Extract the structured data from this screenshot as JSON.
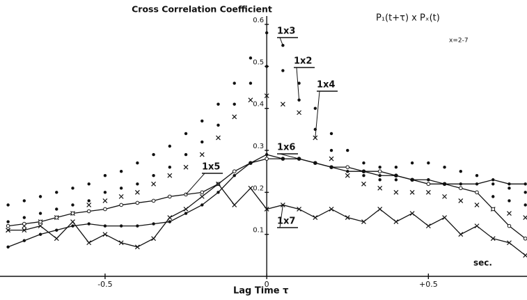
{
  "chart_data": {
    "type": "line",
    "title": "Cross Correlation Coefficient",
    "formula": "P₁(t+τ) x Pₓ(t)",
    "subtitle": "x=2-7",
    "x_label": "Lag Time  τ",
    "x_unit": "sec.",
    "xlim": [
      -0.825,
      0.805
    ],
    "ylim": [
      0,
      0.62
    ],
    "xticks": [
      {
        "value": -0.5,
        "label": "-0.5"
      },
      0,
      {
        "value": 0.5,
        "label": "+0.5"
      }
    ],
    "yticks": [
      0.1,
      0.2,
      0.3,
      0.4,
      0.5,
      0.6
    ],
    "x": [
      -0.8,
      -0.75,
      -0.7,
      -0.65,
      -0.6,
      -0.55,
      -0.5,
      -0.45,
      -0.4,
      -0.35,
      -0.3,
      -0.25,
      -0.2,
      -0.15,
      -0.1,
      -0.05,
      0,
      0.05,
      0.1,
      0.15,
      0.2,
      0.25,
      0.3,
      0.35,
      0.4,
      0.45,
      0.5,
      0.55,
      0.6,
      0.65,
      0.7,
      0.75,
      0.8
    ],
    "series": [
      {
        "name": "1x3",
        "color": "#111111",
        "marker": "dot",
        "line": false,
        "values": [
          0.17,
          0.18,
          0.19,
          0.2,
          0.21,
          0.22,
          0.24,
          0.25,
          0.27,
          0.29,
          0.31,
          0.34,
          0.37,
          0.41,
          0.46,
          0.52,
          0.58,
          0.55,
          0.46,
          0.4,
          0.34,
          0.3,
          0.27,
          0.26,
          0.26,
          0.27,
          0.27,
          0.26,
          0.25,
          0.24,
          0.22,
          0.21,
          0.2
        ]
      },
      {
        "name": "1x2",
        "color": "#111111",
        "marker": "dot",
        "line": false,
        "values": [
          0.13,
          0.14,
          0.15,
          0.16,
          0.17,
          0.18,
          0.2,
          0.21,
          0.22,
          0.24,
          0.26,
          0.29,
          0.32,
          0.36,
          0.41,
          0.46,
          0.5,
          0.49,
          0.42,
          0.35,
          0.3,
          0.26,
          0.24,
          0.23,
          0.23,
          0.23,
          0.23,
          0.22,
          0.21,
          0.2,
          0.19,
          0.18,
          0.17
        ]
      },
      {
        "name": "1x4",
        "color": "#111111",
        "marker": "cross",
        "line": false,
        "values": [
          0.11,
          0.12,
          0.13,
          0.14,
          0.15,
          0.17,
          0.18,
          0.19,
          0.2,
          0.22,
          0.24,
          0.26,
          0.29,
          0.33,
          0.38,
          0.42,
          0.43,
          0.41,
          0.39,
          0.33,
          0.28,
          0.24,
          0.22,
          0.21,
          0.2,
          0.2,
          0.2,
          0.19,
          0.18,
          0.17,
          0.16,
          0.15,
          0.14
        ]
      },
      {
        "name": "1x5",
        "color": "#111111",
        "marker": "circle",
        "line": true,
        "values": [
          0.12,
          0.125,
          0.13,
          0.14,
          0.15,
          0.155,
          0.16,
          0.17,
          0.175,
          0.18,
          0.19,
          0.195,
          0.2,
          0.22,
          0.25,
          0.27,
          0.28,
          0.28,
          0.28,
          0.27,
          0.26,
          0.26,
          0.25,
          0.25,
          0.24,
          0.23,
          0.22,
          0.22,
          0.21,
          0.2,
          0.16,
          0.12,
          0.09
        ]
      },
      {
        "name": "1x6",
        "color": "#111111",
        "marker": "dot",
        "line": true,
        "values": [
          0.07,
          0.085,
          0.1,
          0.11,
          0.12,
          0.125,
          0.12,
          0.12,
          0.12,
          0.125,
          0.13,
          0.15,
          0.17,
          0.2,
          0.24,
          0.27,
          0.29,
          0.28,
          0.28,
          0.27,
          0.26,
          0.25,
          0.25,
          0.24,
          0.24,
          0.23,
          0.23,
          0.22,
          0.22,
          0.22,
          0.23,
          0.22,
          0.22
        ]
      },
      {
        "name": "1x7",
        "color": "#111111",
        "marker": "cross",
        "line": true,
        "values": [
          0.11,
          0.11,
          0.12,
          0.09,
          0.13,
          0.08,
          0.1,
          0.08,
          0.07,
          0.09,
          0.14,
          0.16,
          0.19,
          0.22,
          0.17,
          0.21,
          0.16,
          0.17,
          0.16,
          0.14,
          0.16,
          0.14,
          0.13,
          0.16,
          0.13,
          0.15,
          0.12,
          0.14,
          0.1,
          0.12,
          0.09,
          0.08,
          0.05
        ]
      }
    ]
  }
}
